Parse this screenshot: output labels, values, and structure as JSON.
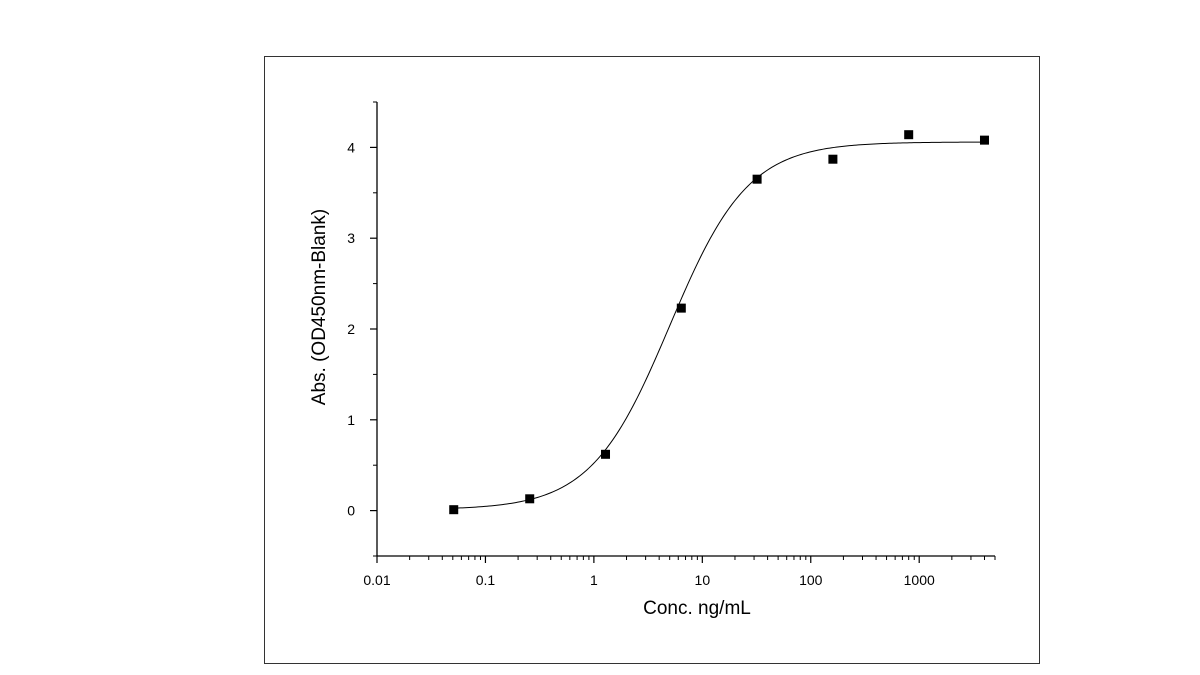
{
  "chart_data": {
    "type": "scatter",
    "title": "",
    "xlabel": "Conc. ng/mL",
    "ylabel": "Abs. (OD450nm-Blank)",
    "x_scale": "log",
    "xlim": [
      0.01,
      5000
    ],
    "ylim": [
      -0.5,
      4.5
    ],
    "x_ticks": [
      {
        "value": 0.01,
        "label": "0.01"
      },
      {
        "value": 0.1,
        "label": "0.1"
      },
      {
        "value": 1,
        "label": "1"
      },
      {
        "value": 10,
        "label": "10"
      },
      {
        "value": 100,
        "label": "100"
      },
      {
        "value": 1000,
        "label": "1000"
      }
    ],
    "y_ticks": [
      {
        "value": 0,
        "label": "0"
      },
      {
        "value": 1,
        "label": "1"
      },
      {
        "value": 2,
        "label": "2"
      },
      {
        "value": 3,
        "label": "3"
      },
      {
        "value": 4,
        "label": "4"
      }
    ],
    "grid": false,
    "series": [
      {
        "marker": "square",
        "color": "#000000",
        "x": [
          0.051,
          0.256,
          1.28,
          6.4,
          32,
          160,
          800,
          4000
        ],
        "y": [
          0.01,
          0.13,
          0.62,
          2.23,
          3.65,
          3.87,
          4.14,
          4.08
        ]
      }
    ],
    "fit_curve": {
      "model": "4PL",
      "color": "#000000",
      "bottom": 0.01,
      "top": 4.06,
      "ec50": 5.0,
      "hill": 1.2
    }
  }
}
